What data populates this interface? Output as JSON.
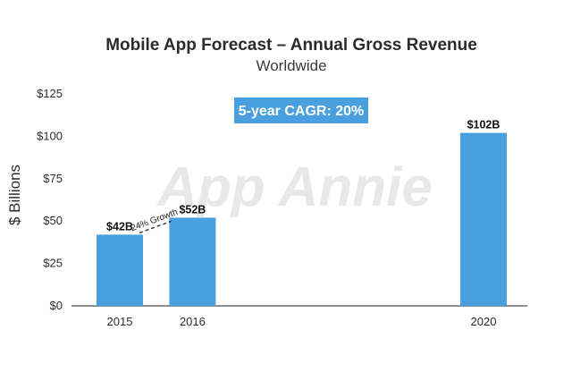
{
  "chart_data": {
    "type": "bar",
    "title": "Mobile App Forecast – Annual Gross Revenue",
    "subtitle": "Worldwide",
    "ylabel": "$ Billions",
    "xlabel": "",
    "categories": [
      "2015",
      "2016",
      "2020"
    ],
    "values": [
      42,
      52,
      102
    ],
    "data_labels": [
      "$42B",
      "$52B",
      "$102B"
    ],
    "ylim": [
      0,
      125
    ],
    "yticks": [
      0,
      25,
      50,
      75,
      100,
      125
    ],
    "ytick_labels": [
      "$0",
      "$25",
      "$50",
      "$75",
      "$100",
      "$125"
    ],
    "grid": false,
    "annotations": {
      "growth": "24% Growth",
      "cagr": "5-year CAGR: 20%"
    },
    "bar_color": "#4a9fdf",
    "cagr_box_color": "#4a9fdf",
    "watermark": "App Annie"
  }
}
